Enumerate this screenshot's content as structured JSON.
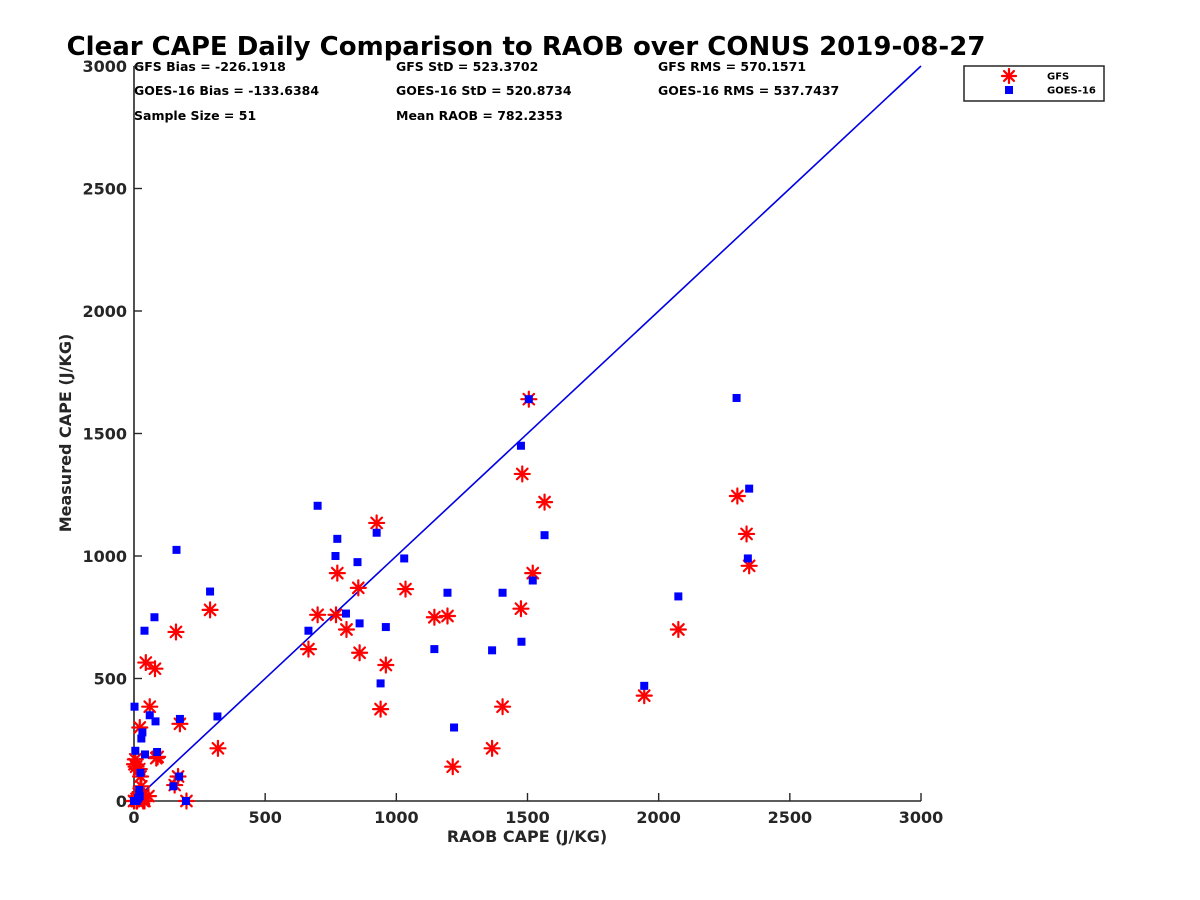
{
  "chart_data": {
    "type": "scatter",
    "title": "Clear CAPE Daily Comparison to RAOB over CONUS 2019-08-27",
    "xlabel": "RAOB CAPE (J/KG)",
    "ylabel": "Measured CAPE (J/KG)",
    "xlim": [
      0,
      3000
    ],
    "ylim": [
      0,
      3000
    ],
    "xticks": [
      0,
      500,
      1000,
      1500,
      2000,
      2500,
      3000
    ],
    "yticks": [
      0,
      500,
      1000,
      1500,
      2000,
      2500,
      3000
    ],
    "x_tick_labels": [
      "0",
      "500",
      "1000",
      "1500",
      "2000",
      "2500",
      "3000"
    ],
    "y_tick_labels": [
      "0",
      "500",
      "1000",
      "1500",
      "2000",
      "2500",
      "3000"
    ],
    "grid": false,
    "legend_position": "outside-top-right",
    "reference_line": {
      "name": "1:1 line",
      "x": [
        0,
        3000
      ],
      "y": [
        0,
        3000
      ],
      "color": "#0000e6"
    },
    "stats": [
      [
        "GFS Bias = -226.1918",
        "GFS StD = 523.3702",
        "GFS RMS = 570.1571"
      ],
      [
        "GOES-16 Bias = -133.6384",
        "GOES-16 StD = 520.8734",
        "GOES-16 RMS = 537.7437"
      ],
      [
        "Sample Size = 51",
        "Mean RAOB = 782.2353"
      ]
    ],
    "series": [
      {
        "name": "GFS",
        "marker": "asterisk",
        "color": "#ff0000",
        "x": [
          0,
          2,
          5,
          8,
          10,
          12,
          15,
          18,
          20,
          22,
          25,
          28,
          30,
          35,
          38,
          40,
          45,
          55,
          60,
          80,
          85,
          90,
          155,
          160,
          168,
          175,
          200,
          290,
          320,
          665,
          700,
          770,
          775,
          810,
          855,
          860,
          925,
          940,
          960,
          1035,
          1145,
          1195,
          1215,
          1365,
          1405,
          1475,
          1480,
          1505,
          1520,
          1565,
          1945,
          2075,
          2300,
          2335,
          2345
        ],
        "y": [
          0,
          150,
          170,
          140,
          0,
          0,
          15,
          30,
          130,
          300,
          100,
          60,
          20,
          0,
          10,
          0,
          565,
          20,
          385,
          540,
          175,
          180,
          65,
          690,
          100,
          315,
          0,
          780,
          215,
          620,
          760,
          760,
          930,
          700,
          870,
          605,
          1135,
          375,
          555,
          865,
          750,
          755,
          140,
          215,
          385,
          785,
          1335,
          1640,
          930,
          1220,
          430,
          700,
          1245,
          1090,
          960
        ]
      },
      {
        "name": "GOES-16",
        "marker": "square",
        "color": "#0000ff",
        "x": [
          0,
          2,
          5,
          10,
          15,
          18,
          20,
          22,
          25,
          28,
          32,
          40,
          42,
          60,
          78,
          82,
          88,
          150,
          162,
          172,
          175,
          198,
          290,
          318,
          665,
          700,
          768,
          775,
          808,
          852,
          860,
          925,
          940,
          960,
          1030,
          1145,
          1195,
          1220,
          1365,
          1405,
          1475,
          1477,
          1505,
          1520,
          1565,
          1945,
          2075,
          2297,
          2340,
          2345
        ],
        "y": [
          0,
          385,
          205,
          0,
          10,
          15,
          45,
          20,
          115,
          255,
          280,
          695,
          190,
          350,
          750,
          325,
          200,
          60,
          1025,
          100,
          335,
          0,
          855,
          345,
          695,
          1205,
          1000,
          1070,
          765,
          975,
          725,
          1095,
          480,
          710,
          990,
          620,
          850,
          300,
          615,
          850,
          1450,
          650,
          1640,
          900,
          1085,
          470,
          835,
          1645,
          990,
          1275
        ]
      }
    ]
  }
}
